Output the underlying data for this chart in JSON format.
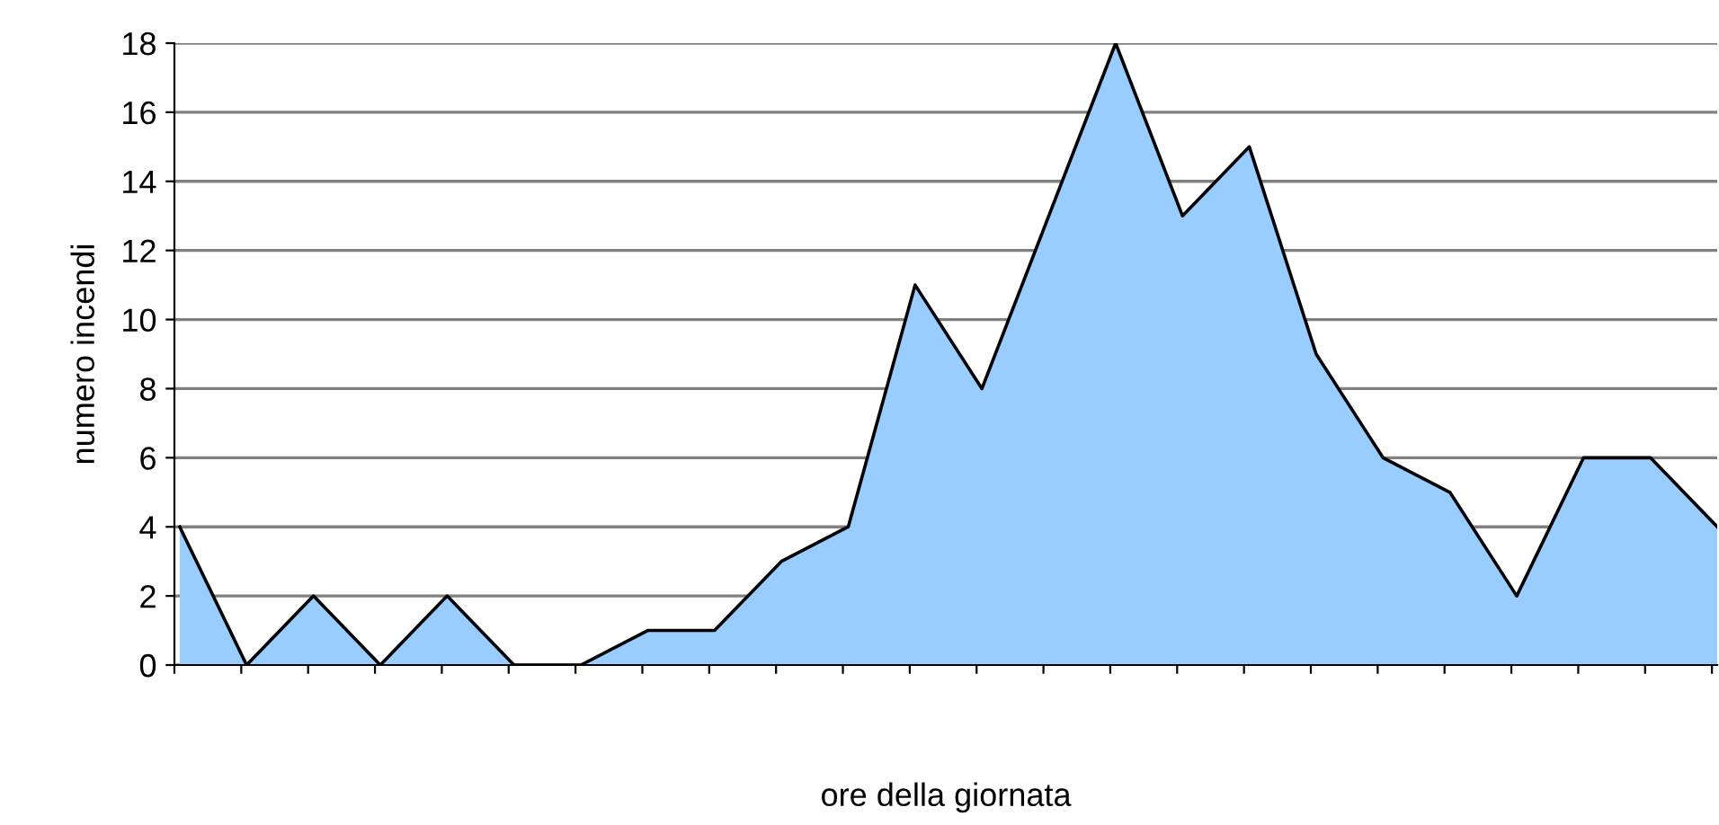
{
  "chart_data": {
    "type": "area",
    "xlabel": "ore della giornata",
    "ylabel": "numero incendi",
    "categories": [
      null,
      null,
      null,
      null,
      null,
      null,
      null,
      null,
      null,
      null,
      null,
      null,
      null,
      null,
      null,
      null,
      null,
      null,
      null,
      null,
      null,
      null,
      null,
      null
    ],
    "series": [
      {
        "color": "#99ccff",
        "values": [
          4,
          0,
          2,
          0,
          2,
          0,
          0,
          1,
          1,
          3,
          4,
          11,
          8,
          13,
          18,
          13,
          15,
          9,
          6,
          5,
          2,
          6,
          6,
          4
        ]
      }
    ],
    "ylim": [
      0,
      18
    ],
    "yticks": [
      0,
      2,
      4,
      6,
      8,
      10,
      12,
      14,
      16,
      18
    ],
    "grid": "y",
    "legend": false,
    "tick_labels": "y"
  }
}
